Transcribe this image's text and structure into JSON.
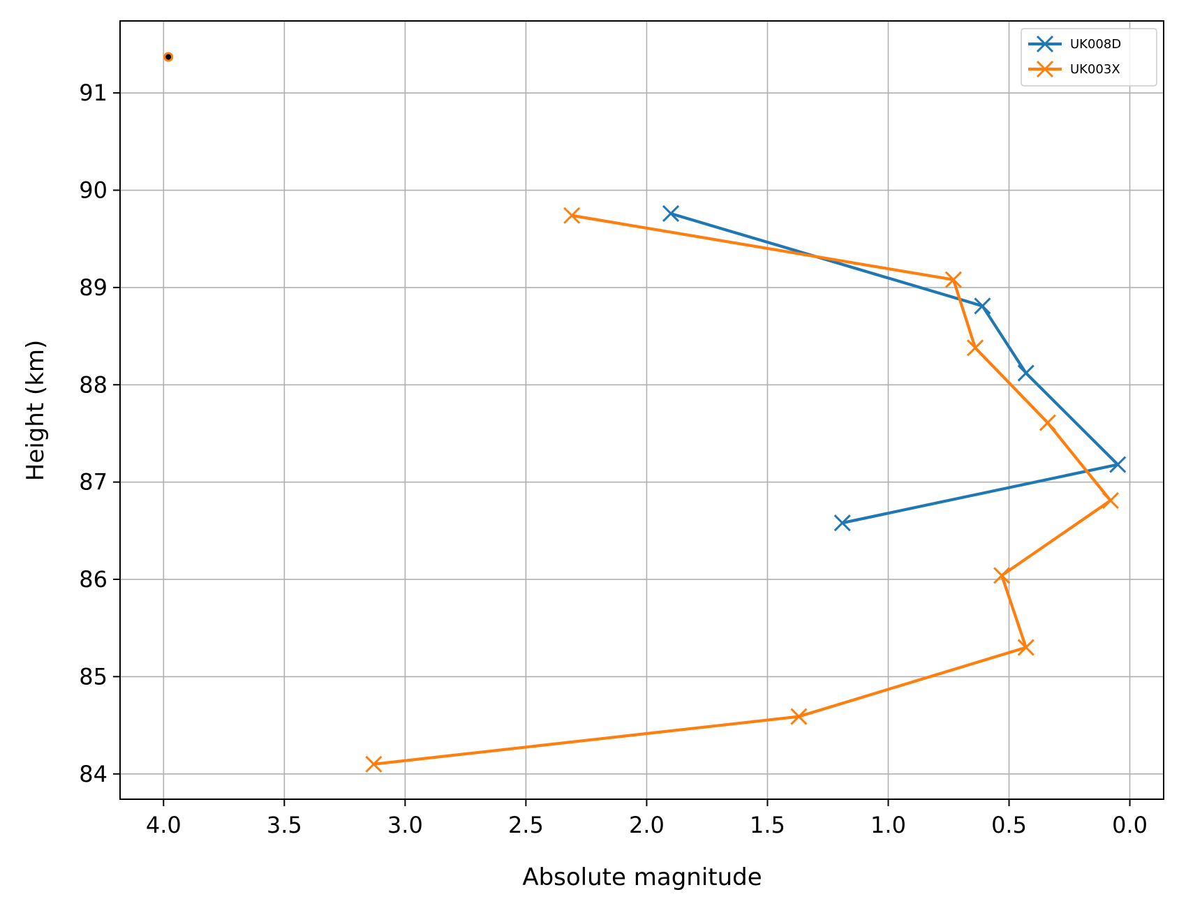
{
  "chart_data": {
    "type": "line",
    "title": "",
    "xlabel": "Absolute magnitude",
    "ylabel": "Height (km)",
    "xlim": [
      4.18,
      -0.14
    ],
    "ylim": [
      83.74,
      91.74
    ],
    "x_inverted": true,
    "grid": true,
    "legend_position": "top-right",
    "xticks": [
      4.0,
      3.5,
      3.0,
      2.5,
      2.0,
      1.5,
      1.0,
      0.5,
      0.0
    ],
    "xtick_labels": [
      "4.0",
      "3.5",
      "3.0",
      "2.5",
      "2.0",
      "1.5",
      "1.0",
      "0.5",
      "0.0"
    ],
    "yticks": [
      84,
      85,
      86,
      87,
      88,
      89,
      90,
      91
    ],
    "ytick_labels": [
      "84",
      "85",
      "86",
      "87",
      "88",
      "89",
      "90",
      "91"
    ],
    "series": [
      {
        "name": "UK008D",
        "color": "#1f77b4",
        "marker": "x",
        "points": [
          [
            1.9,
            89.76
          ],
          [
            0.61,
            88.81
          ],
          [
            0.43,
            88.12
          ],
          [
            0.05,
            87.18
          ],
          [
            1.19,
            86.58
          ]
        ]
      },
      {
        "name": "UK003X",
        "color": "#ff7f0e",
        "marker": "x",
        "points": [
          [
            2.31,
            89.74
          ],
          [
            0.73,
            89.08
          ],
          [
            0.64,
            88.38
          ],
          [
            0.34,
            87.61
          ],
          [
            0.08,
            86.81
          ],
          [
            0.53,
            86.04
          ],
          [
            0.43,
            85.3
          ],
          [
            1.37,
            84.59
          ],
          [
            3.13,
            84.1
          ]
        ]
      }
    ],
    "extra_points": [
      {
        "x": 3.98,
        "y": 91.37,
        "fill": "#000000",
        "edge": "#ff7f0e"
      }
    ]
  }
}
